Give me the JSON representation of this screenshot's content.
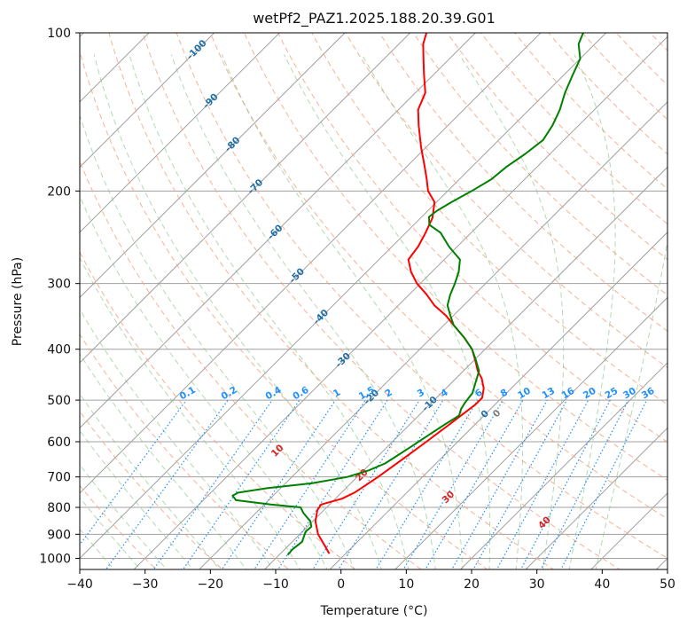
{
  "chart_data": {
    "type": "line",
    "subtype": "skew-t log-p diagram",
    "title": "wetPf2_PAZ1.2025.188.20.39.G01",
    "xlabel": "Temperature (°C)",
    "ylabel": "Pressure (hPa)",
    "xlim": [
      -40,
      50
    ],
    "ylim": [
      1050,
      100
    ],
    "y_scale": "log",
    "x_ticks": [
      -40,
      -30,
      -20,
      -10,
      0,
      10,
      20,
      30,
      40,
      50
    ],
    "x_tick_labels": [
      "−40",
      "−30",
      "−20",
      "−10",
      "0",
      "10",
      "20",
      "30",
      "40",
      "50"
    ],
    "y_ticks": [
      1000,
      900,
      800,
      700,
      600,
      500,
      400,
      300,
      200,
      100
    ],
    "y_tick_labels": [
      "1000",
      "900",
      "800",
      "700",
      "600",
      "500",
      "400",
      "300",
      "200",
      "100"
    ],
    "grid": true,
    "colors": {
      "temperature": "#ff0000",
      "dewpoint": "#008000",
      "isotherm": "#a0a0a0",
      "isobar": "#a0a0a0",
      "dry_adiabat": "#f4a582",
      "moist_adiabat": "#7fbf7f",
      "mixing_ratio": "#1e90ff",
      "isotherm_label": "#1f6fa8",
      "theta_label": "#d62728",
      "zero_label": "#808080"
    },
    "series": [
      {
        "role": "temperature",
        "points_p_t": [
          [
            980,
            -2.5
          ],
          [
            950,
            -4.2
          ],
          [
            900,
            -7.2
          ],
          [
            850,
            -9.6
          ],
          [
            810,
            -11.0
          ],
          [
            790,
            -11.3
          ],
          [
            770,
            -9.0
          ],
          [
            750,
            -8.0
          ],
          [
            700,
            -6.8
          ],
          [
            650,
            -5.8
          ],
          [
            600,
            -4.8
          ],
          [
            550,
            -3.8
          ],
          [
            510,
            -3.0
          ],
          [
            495,
            -3.0
          ],
          [
            475,
            -4.2
          ],
          [
            455,
            -6.0
          ],
          [
            440,
            -7.8
          ],
          [
            420,
            -9.8
          ],
          [
            400,
            -12.0
          ],
          [
            380,
            -15.0
          ],
          [
            360,
            -18.5
          ],
          [
            345,
            -21.2
          ],
          [
            330,
            -24.5
          ],
          [
            315,
            -27.3
          ],
          [
            300,
            -30.5
          ],
          [
            285,
            -33.2
          ],
          [
            270,
            -35.5
          ],
          [
            255,
            -36.0
          ],
          [
            240,
            -37.0
          ],
          [
            225,
            -38.2
          ],
          [
            210,
            -40.3
          ],
          [
            200,
            -43.0
          ],
          [
            190,
            -45.0
          ],
          [
            180,
            -47.2
          ],
          [
            165,
            -50.8
          ],
          [
            150,
            -54.5
          ],
          [
            140,
            -57.0
          ],
          [
            130,
            -58.5
          ],
          [
            120,
            -61.5
          ],
          [
            112,
            -64.0
          ],
          [
            105,
            -66.3
          ],
          [
            100,
            -67.5
          ]
        ]
      },
      {
        "role": "dewpoint",
        "points_p_t": [
          [
            985,
            -8.7
          ],
          [
            960,
            -8.8
          ],
          [
            930,
            -8.5
          ],
          [
            890,
            -9.5
          ],
          [
            870,
            -9.4
          ],
          [
            850,
            -10.4
          ],
          [
            820,
            -12.7
          ],
          [
            800,
            -14.0
          ],
          [
            790,
            -19.0
          ],
          [
            775,
            -25.0
          ],
          [
            760,
            -26.2
          ],
          [
            750,
            -25.8
          ],
          [
            735,
            -22.0
          ],
          [
            720,
            -16.0
          ],
          [
            700,
            -11.5
          ],
          [
            680,
            -9.2
          ],
          [
            660,
            -7.8
          ],
          [
            640,
            -7.2
          ],
          [
            610,
            -6.3
          ],
          [
            580,
            -5.4
          ],
          [
            555,
            -4.6
          ],
          [
            535,
            -3.8
          ],
          [
            520,
            -4.5
          ],
          [
            505,
            -4.9
          ],
          [
            485,
            -5.2
          ],
          [
            460,
            -6.5
          ],
          [
            440,
            -7.6
          ],
          [
            420,
            -9.7
          ],
          [
            400,
            -12.0
          ],
          [
            380,
            -15.0
          ],
          [
            360,
            -18.5
          ],
          [
            345,
            -20.5
          ],
          [
            330,
            -22.5
          ],
          [
            315,
            -23.7
          ],
          [
            300,
            -24.7
          ],
          [
            285,
            -25.9
          ],
          [
            270,
            -27.6
          ],
          [
            255,
            -31.3
          ],
          [
            240,
            -34.7
          ],
          [
            232,
            -37.6
          ],
          [
            224,
            -38.9
          ],
          [
            218,
            -38.6
          ],
          [
            210,
            -37.7
          ],
          [
            200,
            -36.3
          ],
          [
            190,
            -35.1
          ],
          [
            180,
            -34.7
          ],
          [
            170,
            -33.8
          ],
          [
            160,
            -33.2
          ],
          [
            150,
            -34.0
          ],
          [
            140,
            -35.3
          ],
          [
            130,
            -37.1
          ],
          [
            120,
            -38.7
          ],
          [
            112,
            -40.0
          ],
          [
            105,
            -42.5
          ],
          [
            100,
            -43.5
          ]
        ]
      }
    ],
    "isotherm_labels": [
      "-100",
      "-90",
      "-80",
      "-70",
      "-60",
      "-50",
      "-40",
      "-30",
      "-20",
      "-10",
      "0"
    ],
    "mixing_ratio_labels": [
      "0.1",
      "0.2",
      "0.4",
      "0.6",
      "1",
      "1.5",
      "2",
      "3",
      "4",
      "6",
      "8",
      "10",
      "13",
      "16",
      "20",
      "25",
      "30",
      "36"
    ],
    "theta_labels": [
      "10",
      "20",
      "30",
      "40"
    ],
    "zero_label": "0"
  }
}
